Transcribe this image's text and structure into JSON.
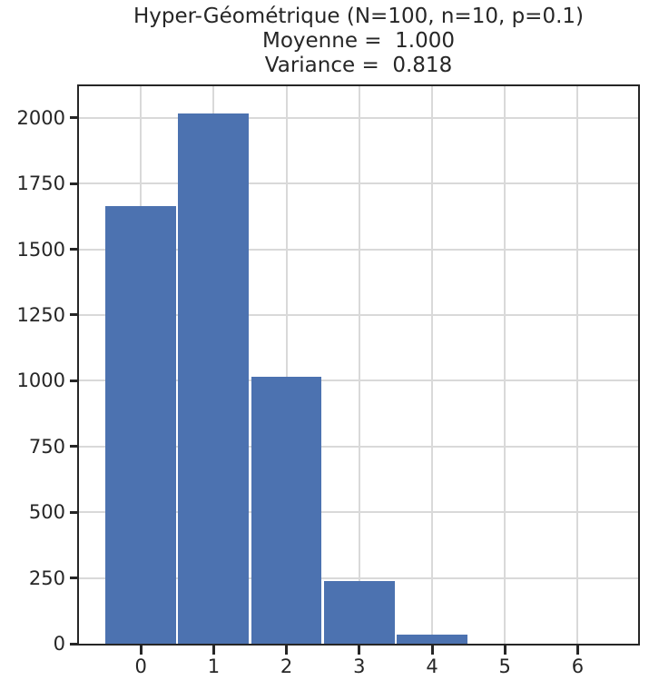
{
  "chart_data": {
    "type": "bar",
    "title": "Hyper-Géométrique (N=100, n=10, p=0.1)",
    "title_lines": [
      "Hyper-Géométrique (N=100, n=10, p=0.1)",
      "Moyenne =  1.000",
      "Variance =  0.818"
    ],
    "xlabel": "",
    "ylabel": "",
    "categories": [
      0,
      1,
      2,
      3,
      4,
      5,
      6
    ],
    "values": [
      1665,
      2015,
      1015,
      240,
      33,
      0,
      0
    ],
    "xticks": [
      0,
      1,
      2,
      3,
      4,
      5,
      6
    ],
    "yticks": [
      0,
      250,
      500,
      750,
      1000,
      1250,
      1500,
      1750,
      2000
    ],
    "xlim": [
      -0.85,
      6.83
    ],
    "ylim": [
      0,
      2120
    ],
    "bar_width": 0.97,
    "grid": true,
    "legend": false,
    "colors": {
      "bar": "#4c72b0",
      "grid": "#d9d9d9",
      "spine": "#262626",
      "text": "#262626",
      "background": "#ffffff"
    }
  }
}
